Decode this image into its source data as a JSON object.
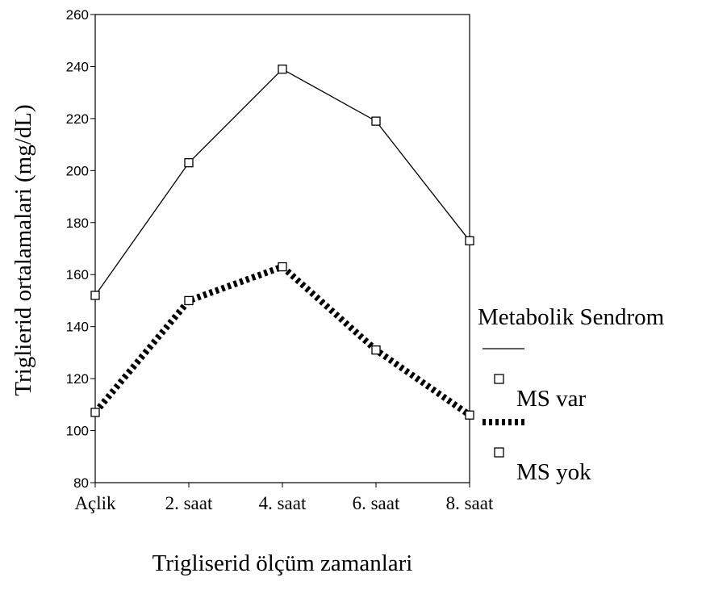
{
  "chart_data": {
    "type": "line",
    "x_label": "Trigliserid ölçüm zamanlari",
    "y_label": "Triglierid ortalamalari (mg/dL)",
    "legend_title": "Metabolik Sendrom",
    "legend": "right",
    "categories": [
      "Açlik",
      "2. saat",
      "4. saat",
      "6. saat",
      "8. saat"
    ],
    "series": [
      {
        "name": "MS var",
        "color": "#000000",
        "style": "solid",
        "values": [
          152,
          203,
          239,
          219,
          173
        ]
      },
      {
        "name": "MS yok",
        "color": "#000000",
        "style": "dashed",
        "values": [
          107,
          150,
          163,
          131,
          106
        ]
      }
    ],
    "ylim": [
      80,
      260
    ],
    "yticks": [
      80,
      100,
      120,
      140,
      160,
      180,
      200,
      220,
      240,
      260
    ]
  }
}
